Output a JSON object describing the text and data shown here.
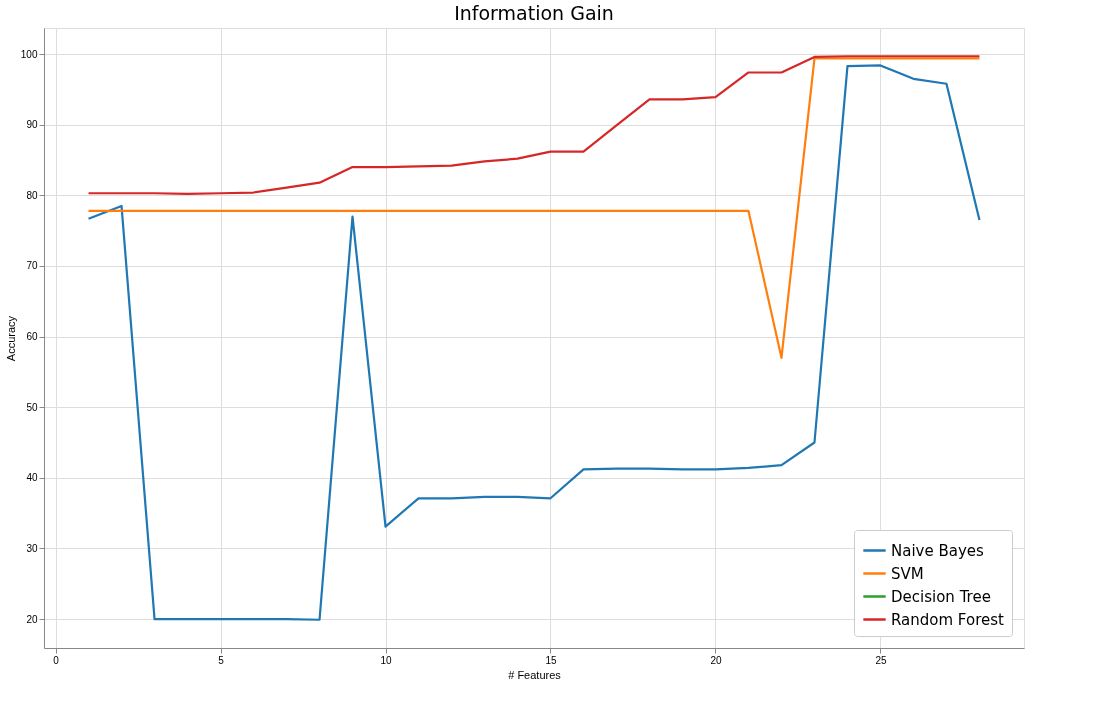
{
  "chart_data": {
    "type": "line",
    "title": "Information Gain",
    "xlabel": "# Features",
    "ylabel": "Accuracy",
    "x": [
      1,
      2,
      3,
      4,
      5,
      6,
      7,
      8,
      9,
      10,
      11,
      12,
      13,
      14,
      15,
      16,
      17,
      18,
      19,
      20,
      21,
      22,
      23,
      24,
      25,
      26,
      27,
      28
    ],
    "series": [
      {
        "name": "Naive Bayes",
        "color": "#1f77b4",
        "values": [
          76.7,
          78.5,
          20,
          20,
          20,
          20,
          20,
          19.9,
          77,
          33.1,
          37.1,
          37.1,
          37.3,
          37.3,
          37.1,
          41.2,
          41.3,
          41.3,
          41.2,
          41.2,
          41.4,
          41.8,
          45,
          98.3,
          98.4,
          96.5,
          95.8,
          76.5
        ]
      },
      {
        "name": "SVM",
        "color": "#ff7f0e",
        "values": [
          77.8,
          77.8,
          77.8,
          77.8,
          77.8,
          77.8,
          77.8,
          77.8,
          77.8,
          77.8,
          77.8,
          77.8,
          77.8,
          77.8,
          77.8,
          77.8,
          77.8,
          77.8,
          77.8,
          77.8,
          77.8,
          57,
          99.4,
          99.4,
          99.4,
          99.4,
          99.4,
          99.4
        ]
      },
      {
        "name": "Decision Tree",
        "color": "#2ca02c",
        "values": [
          null,
          null,
          null,
          null,
          null,
          null,
          null,
          null,
          null,
          null,
          null,
          null,
          null,
          null,
          null,
          null,
          null,
          null,
          null,
          null,
          null,
          null,
          null,
          null,
          null,
          null,
          null,
          null
        ]
      },
      {
        "name": "Random Forest",
        "color": "#d62728",
        "values": [
          80.3,
          80.3,
          80.3,
          80.2,
          80.3,
          80.4,
          81.1,
          81.8,
          84,
          84,
          84.1,
          84.2,
          84.8,
          85.2,
          86.2,
          86.2,
          89.9,
          93.6,
          93.6,
          93.9,
          97.4,
          97.4,
          99.6,
          99.7,
          99.7,
          99.7,
          99.7,
          99.7
        ]
      }
    ],
    "xlim": [
      -0.35,
      29.35
    ],
    "xticks": [
      0,
      5,
      10,
      15,
      20,
      25
    ],
    "ylim": [
      15.9,
      103.7
    ],
    "yticks": [
      20,
      30,
      40,
      50,
      60,
      70,
      80,
      90,
      100
    ],
    "grid": true,
    "legend": "bottom right",
    "marker": "none",
    "line_style": "solid"
  }
}
